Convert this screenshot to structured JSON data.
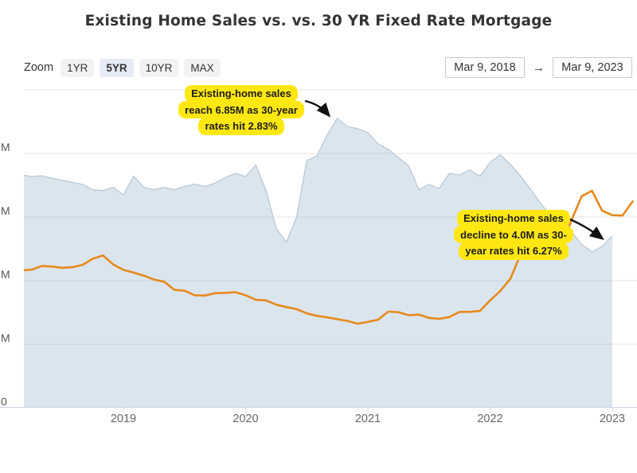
{
  "title": "Existing Home Sales vs. vs. 30 YR Fixed Rate Mortgage",
  "toolbar": {
    "zoom_label": "Zoom",
    "buttons": [
      {
        "label": "1YR",
        "selected": false
      },
      {
        "label": "5YR",
        "selected": true
      },
      {
        "label": "10YR",
        "selected": false
      },
      {
        "label": "MAX",
        "selected": false
      }
    ],
    "date_from": "Mar 9, 2018",
    "range_arrow": "→",
    "date_to": "Mar 9, 2023"
  },
  "annotations": [
    {
      "lines": [
        "Existing-home sales",
        "reach 6.85M as 30-year",
        "rates hit 2.83%"
      ]
    },
    {
      "lines": [
        "Existing-home sales",
        "decline to 4.0M as 30-",
        "year rates hit 6.27%"
      ]
    }
  ],
  "colors": {
    "annotation_bg": "#ffe712",
    "area_fill": "rgba(125,160,193,0.28)",
    "area_edge": "#b7c9d8",
    "rate_line": "#e8891d",
    "gridline": "#e6e6e6",
    "axis_line": "#ccd6eb",
    "arrow": "#111111"
  },
  "chart_data": {
    "type": "area",
    "title": "Existing Home Sales vs. vs. 30 YR Fixed Rate Mortgage",
    "x_range": [
      "Mar 9, 2018",
      "Mar 9, 2023"
    ],
    "x_tick_labels": [
      "2019",
      "2020",
      "2021",
      "2022",
      "2023"
    ],
    "y_tick_labels_visible": [
      "M",
      "M",
      "M",
      "M",
      "0"
    ],
    "grid": true,
    "legend": false,
    "series": [
      {
        "name": "Existing Home Sales",
        "type": "area",
        "unit": "M",
        "start_month": "2018-03",
        "monthly_values": [
          5.48,
          5.44,
          5.46,
          5.4,
          5.35,
          5.3,
          5.25,
          5.12,
          5.1,
          5.18,
          5.0,
          5.45,
          5.18,
          5.12,
          5.18,
          5.12,
          5.2,
          5.26,
          5.2,
          5.28,
          5.42,
          5.52,
          5.44,
          5.72,
          5.1,
          4.19,
          3.85,
          4.46,
          5.83,
          5.94,
          6.44,
          6.85,
          6.65,
          6.6,
          6.5,
          6.23,
          6.1,
          5.9,
          5.7,
          5.12,
          5.25,
          5.15,
          5.52,
          5.48,
          5.6,
          5.45,
          5.78,
          5.97,
          5.73,
          5.45,
          5.12,
          4.78,
          4.48,
          4.28,
          4.1,
          3.8,
          3.62,
          3.75,
          4.0
        ]
      },
      {
        "name": "30 YR Fixed Rate Mortgage",
        "type": "line",
        "unit": "%",
        "start_month": "2018-03",
        "monthly_values": [
          4.44,
          4.47,
          4.59,
          4.57,
          4.53,
          4.55,
          4.63,
          4.83,
          4.94,
          4.64,
          4.46,
          4.37,
          4.27,
          4.14,
          4.07,
          3.8,
          3.77,
          3.62,
          3.61,
          3.69,
          3.7,
          3.72,
          3.62,
          3.47,
          3.45,
          3.31,
          3.23,
          3.16,
          3.02,
          2.94,
          2.89,
          2.83,
          2.77,
          2.68,
          2.74,
          2.81,
          3.08,
          3.06,
          2.96,
          2.98,
          2.87,
          2.84,
          2.9,
          3.07,
          3.07,
          3.1,
          3.45,
          3.76,
          4.17,
          4.98,
          5.23,
          5.52,
          5.41,
          5.22,
          6.11,
          6.9,
          7.08,
          6.42,
          6.27,
          6.26,
          6.73
        ]
      }
    ],
    "annotated_points": [
      {
        "label": "sales peak",
        "sales": "6.85M",
        "rate": "2.83%"
      },
      {
        "label": "sales end",
        "sales": "4.0M",
        "rate": "6.27%"
      }
    ]
  }
}
